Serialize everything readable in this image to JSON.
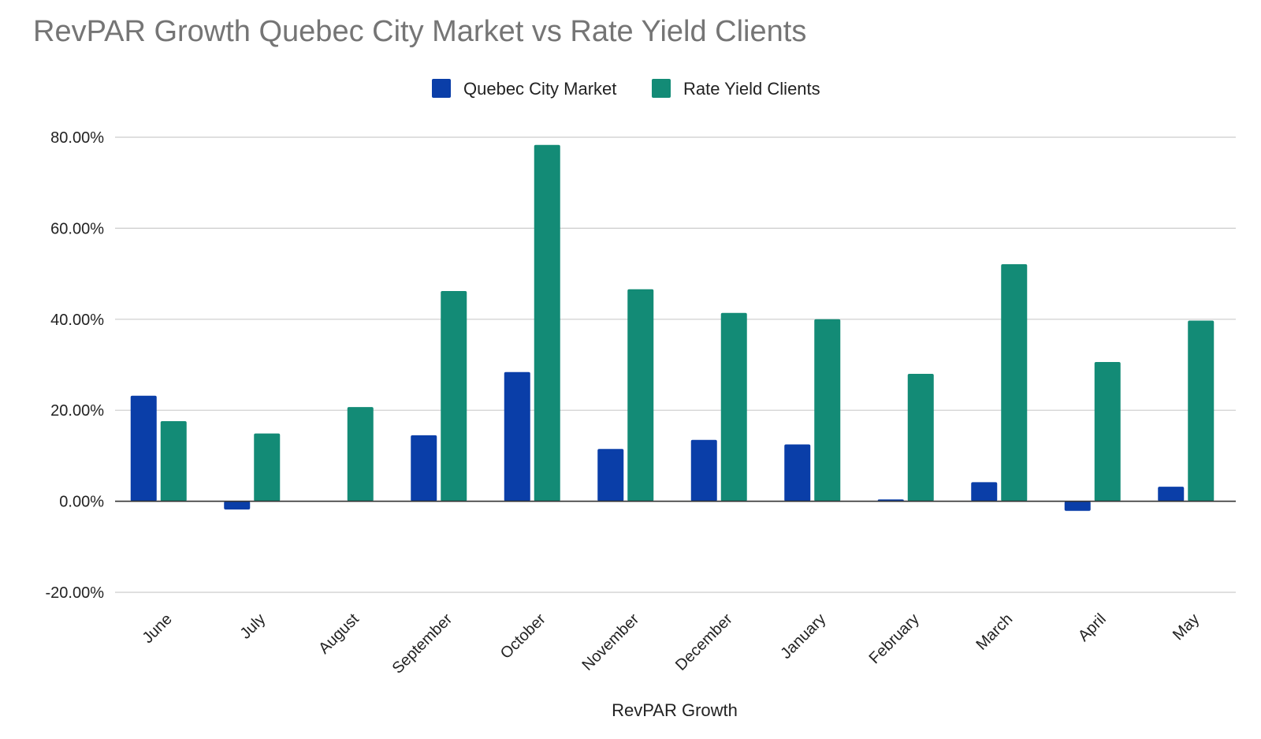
{
  "chart_data": {
    "type": "bar",
    "title": "RevPAR Growth Quebec City Market vs Rate Yield Clients",
    "xlabel": "RevPAR Growth",
    "ylabel": "",
    "ylim": [
      -20,
      80
    ],
    "y_ticks": [
      "-20.00%",
      "0.00%",
      "20.00%",
      "40.00%",
      "60.00%",
      "80.00%"
    ],
    "y_tick_values": [
      -20,
      0,
      20,
      40,
      60,
      80
    ],
    "grid": true,
    "legend_position": "top-center",
    "categories": [
      "June",
      "July",
      "August",
      "September",
      "October",
      "November",
      "December",
      "January",
      "February",
      "March",
      "April",
      "May"
    ],
    "series": [
      {
        "name": "Quebec City Market",
        "color": "#0a3ea8",
        "values": [
          23.2,
          -1.8,
          0.0,
          14.5,
          28.4,
          11.5,
          13.5,
          12.5,
          0.4,
          4.2,
          -2.1,
          3.2
        ]
      },
      {
        "name": "Rate Yield Clients",
        "color": "#138b76",
        "values": [
          17.6,
          14.9,
          20.7,
          46.2,
          78.3,
          46.6,
          41.4,
          40.0,
          28.0,
          52.1,
          30.6,
          39.7
        ]
      }
    ]
  }
}
